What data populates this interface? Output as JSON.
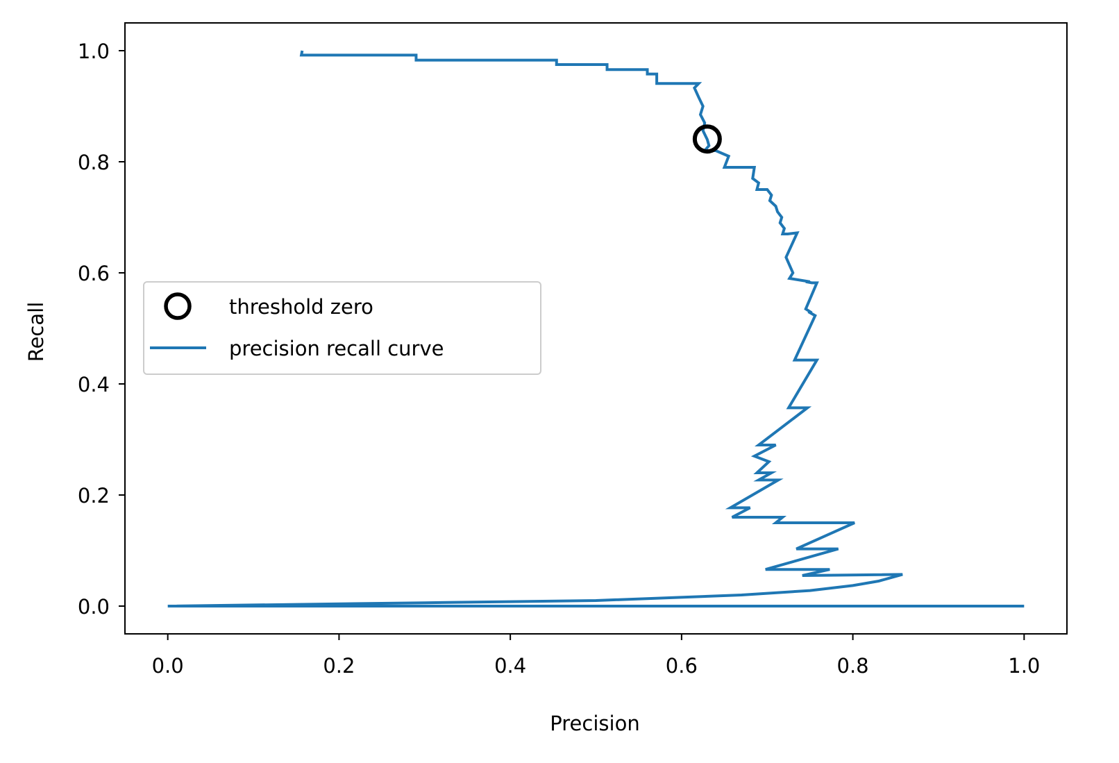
{
  "chart_data": {
    "type": "line",
    "title": "",
    "xlabel": "Precision",
    "ylabel": "Recall",
    "xlim": [
      -0.05,
      1.05
    ],
    "ylim": [
      -0.05,
      1.05
    ],
    "xticks": [
      "0.0",
      "0.2",
      "0.4",
      "0.6",
      "0.8",
      "1.0"
    ],
    "yticks": [
      "0.0",
      "0.2",
      "0.4",
      "0.6",
      "0.8",
      "1.0"
    ],
    "grid": false,
    "legend_position": "center-left",
    "series": [
      {
        "name": "precision recall curve",
        "kind": "line",
        "color": "#1f77b4",
        "points": [
          [
            0.157,
            1.0
          ],
          [
            0.156,
            0.992
          ],
          [
            0.29,
            0.992
          ],
          [
            0.29,
            0.983
          ],
          [
            0.454,
            0.983
          ],
          [
            0.454,
            0.975
          ],
          [
            0.513,
            0.975
          ],
          [
            0.513,
            0.966
          ],
          [
            0.56,
            0.966
          ],
          [
            0.56,
            0.958
          ],
          [
            0.571,
            0.958
          ],
          [
            0.571,
            0.941
          ],
          [
            0.62,
            0.941
          ],
          [
            0.615,
            0.933
          ],
          [
            0.62,
            0.916
          ],
          [
            0.625,
            0.9
          ],
          [
            0.622,
            0.885
          ],
          [
            0.627,
            0.87
          ],
          [
            0.625,
            0.856
          ],
          [
            0.63,
            0.84
          ],
          [
            0.632,
            0.829
          ],
          [
            0.627,
            0.82
          ],
          [
            0.64,
            0.82
          ],
          [
            0.655,
            0.81
          ],
          [
            0.65,
            0.79
          ],
          [
            0.685,
            0.79
          ],
          [
            0.683,
            0.77
          ],
          [
            0.69,
            0.762
          ],
          [
            0.688,
            0.75
          ],
          [
            0.7,
            0.75
          ],
          [
            0.705,
            0.74
          ],
          [
            0.703,
            0.73
          ],
          [
            0.71,
            0.72
          ],
          [
            0.712,
            0.71
          ],
          [
            0.717,
            0.7
          ],
          [
            0.715,
            0.69
          ],
          [
            0.72,
            0.68
          ],
          [
            0.718,
            0.67
          ],
          [
            0.724,
            0.67
          ],
          [
            0.735,
            0.672
          ],
          [
            0.722,
            0.628
          ],
          [
            0.73,
            0.6
          ],
          [
            0.726,
            0.59
          ],
          [
            0.75,
            0.584
          ],
          [
            0.745,
            0.584
          ],
          [
            0.752,
            0.582
          ],
          [
            0.758,
            0.582
          ],
          [
            0.745,
            0.535
          ],
          [
            0.752,
            0.528
          ],
          [
            0.748,
            0.53
          ],
          [
            0.756,
            0.523
          ],
          [
            0.732,
            0.443
          ],
          [
            0.758,
            0.443
          ],
          [
            0.725,
            0.357
          ],
          [
            0.73,
            0.357
          ],
          [
            0.747,
            0.357
          ],
          [
            0.69,
            0.29
          ],
          [
            0.71,
            0.29
          ],
          [
            0.685,
            0.27
          ],
          [
            0.702,
            0.26
          ],
          [
            0.688,
            0.24
          ],
          [
            0.705,
            0.24
          ],
          [
            0.69,
            0.227
          ],
          [
            0.713,
            0.227
          ],
          [
            0.657,
            0.177
          ],
          [
            0.68,
            0.177
          ],
          [
            0.659,
            0.16
          ],
          [
            0.718,
            0.16
          ],
          [
            0.71,
            0.15
          ],
          [
            0.802,
            0.15
          ],
          [
            0.734,
            0.103
          ],
          [
            0.783,
            0.103
          ],
          [
            0.698,
            0.066
          ],
          [
            0.773,
            0.066
          ],
          [
            0.741,
            0.055
          ],
          [
            0.858,
            0.057
          ],
          [
            0.83,
            0.045
          ],
          [
            0.8,
            0.037
          ],
          [
            0.75,
            0.028
          ],
          [
            0.67,
            0.02
          ],
          [
            0.5,
            0.01
          ],
          [
            0.3,
            0.006
          ],
          [
            0.0,
            0.0
          ],
          [
            1.0,
            0.0
          ]
        ]
      },
      {
        "name": "threshold zero",
        "kind": "marker",
        "marker": "open-circle",
        "color": "#000000",
        "points": [
          [
            0.63,
            0.841
          ]
        ]
      }
    ],
    "legend_order": [
      "threshold zero",
      "precision recall curve"
    ]
  }
}
